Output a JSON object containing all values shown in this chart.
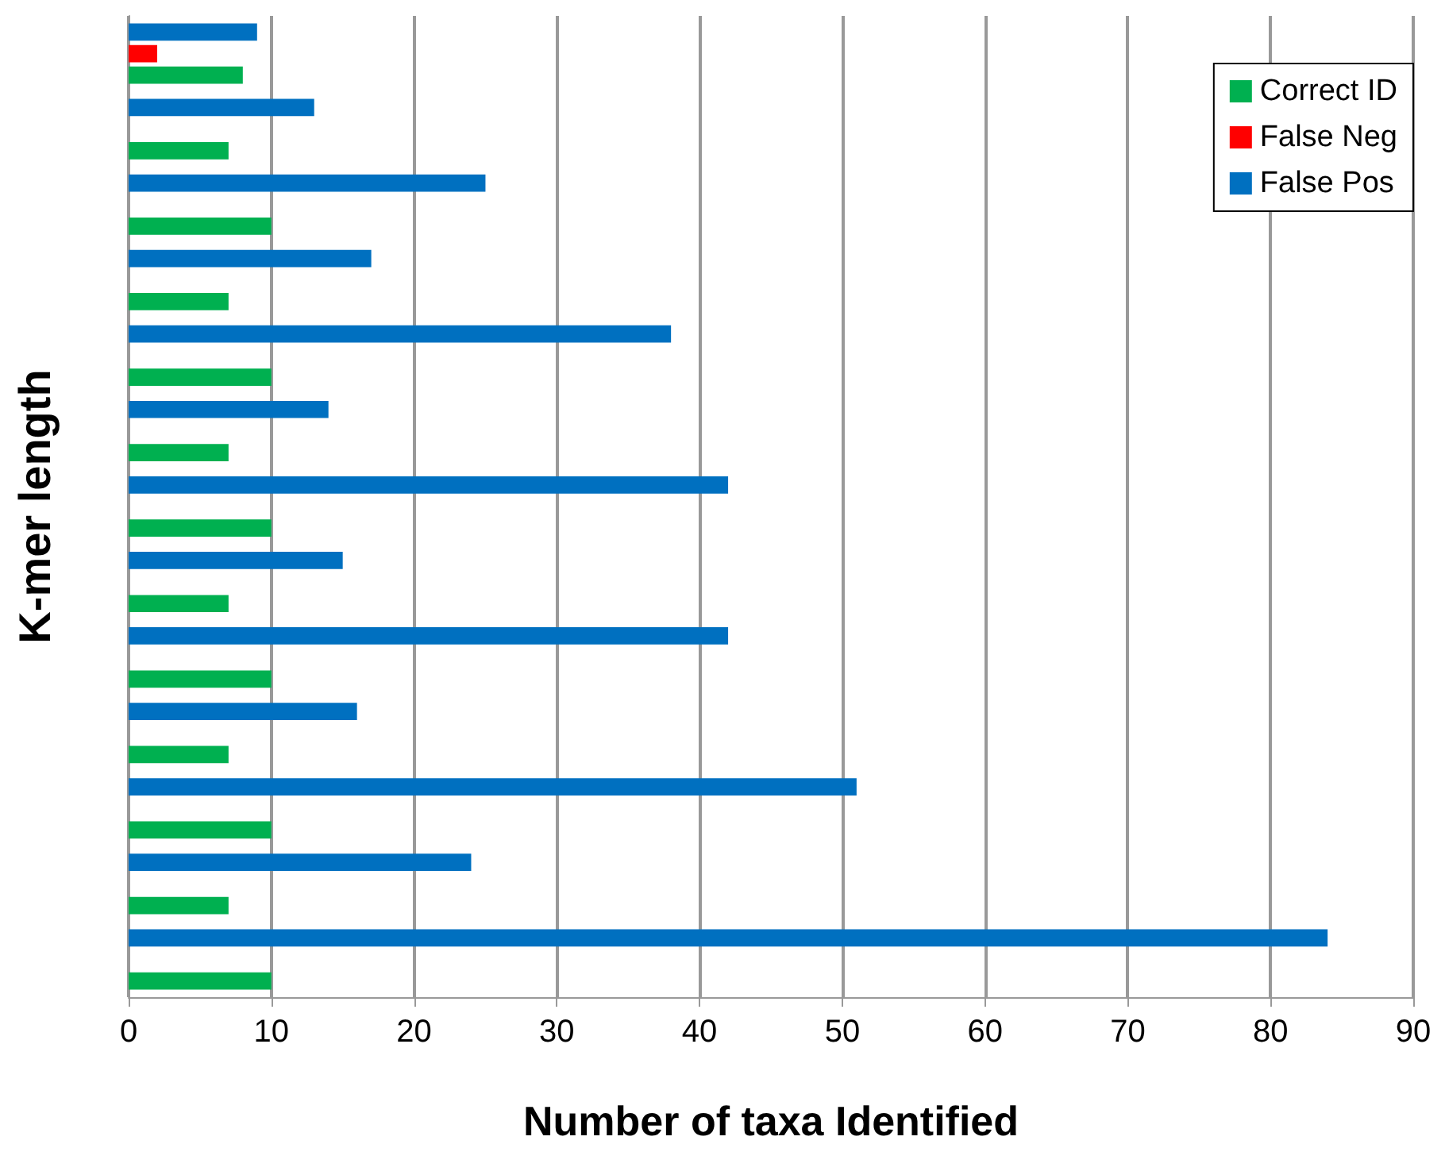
{
  "chart_data": {
    "type": "bar",
    "orientation": "horizontal",
    "xlabel": "Number of taxa Identified",
    "ylabel": "K-mer length",
    "categories": [
      null,
      null,
      null,
      null,
      null,
      null,
      null,
      null,
      null,
      null,
      null,
      null,
      null
    ],
    "series": [
      {
        "name": "Correct ID",
        "color": "#00b050",
        "values": [
          8,
          7,
          10,
          7,
          10,
          7,
          10,
          7,
          10,
          7,
          10,
          7,
          10
        ]
      },
      {
        "name": "False Neg",
        "color": "#ff0000",
        "values": [
          2,
          0,
          0,
          0,
          0,
          0,
          0,
          0,
          0,
          0,
          0,
          0,
          0
        ]
      },
      {
        "name": "False Pos",
        "color": "#0070c0",
        "values": [
          9,
          13,
          25,
          17,
          38,
          14,
          42,
          15,
          42,
          16,
          51,
          24,
          84
        ]
      }
    ],
    "xlim": [
      0,
      90
    ],
    "xticks": [
      0,
      10,
      20,
      30,
      40,
      50,
      60,
      70,
      80,
      90
    ],
    "grid": "x",
    "legend": "top right"
  }
}
